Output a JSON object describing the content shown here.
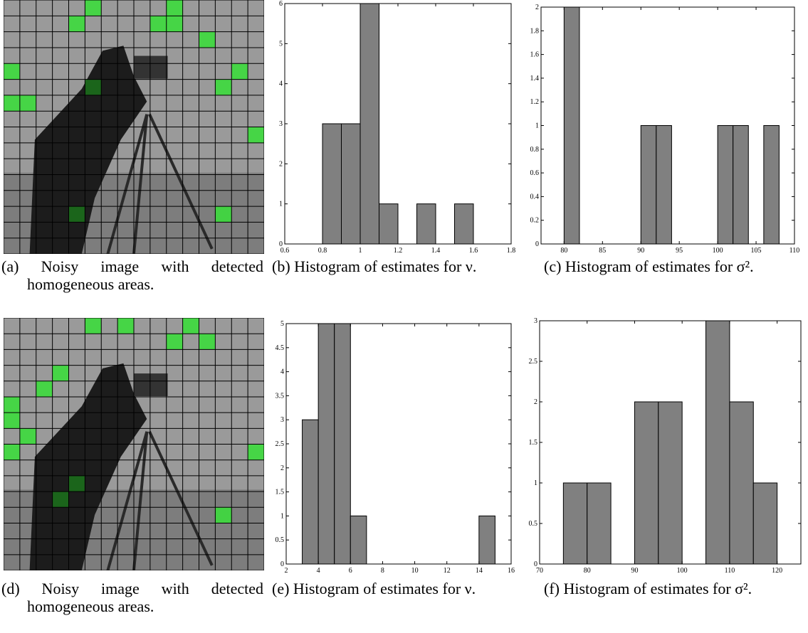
{
  "chart_data": [
    {
      "type": "histogram",
      "bins": [
        0.8,
        0.9,
        1.0,
        1.1,
        1.2,
        1.3,
        1.4,
        1.5,
        1.6
      ],
      "counts": [
        3,
        3,
        6,
        1,
        0,
        1,
        0,
        1
      ],
      "color": "#808080",
      "xlim": [
        0.6,
        1.8
      ],
      "xticks": [
        0.6,
        0.8,
        1,
        1.2,
        1.4,
        1.6,
        1.8
      ],
      "ylim": [
        0,
        6
      ],
      "yticks": [
        0,
        1,
        2,
        3,
        4,
        5,
        6
      ]
    },
    {
      "type": "histogram",
      "bins": [
        80,
        82,
        84,
        86,
        88,
        90,
        92,
        94,
        96,
        98,
        100,
        102,
        104,
        106,
        108
      ],
      "counts": [
        2,
        0,
        0,
        0,
        0,
        1,
        1,
        0,
        0,
        0,
        1,
        1,
        0,
        1
      ],
      "color": "#808080",
      "xlim": [
        77,
        110
      ],
      "xticks": [
        80,
        85,
        90,
        95,
        100,
        105,
        110
      ],
      "ylim": [
        0,
        2
      ],
      "yticks": [
        0,
        0.2,
        0.4,
        0.6,
        0.8,
        1,
        1.2,
        1.4,
        1.6,
        1.8,
        2
      ]
    },
    {
      "type": "histogram",
      "bins": [
        3,
        4,
        5,
        6,
        7,
        8,
        9,
        10,
        11,
        12,
        13,
        14,
        15
      ],
      "counts": [
        3,
        5,
        5,
        1,
        0,
        0,
        0,
        0,
        0,
        0,
        0,
        1
      ],
      "color": "#808080",
      "xlim": [
        2,
        16
      ],
      "xticks": [
        2,
        4,
        6,
        8,
        10,
        12,
        14,
        16
      ],
      "ylim": [
        0,
        5
      ],
      "yticks": [
        0,
        0.5,
        1,
        1.5,
        2,
        2.5,
        3,
        3.5,
        4,
        4.5,
        5
      ]
    },
    {
      "type": "histogram",
      "bins": [
        75,
        80,
        85,
        90,
        95,
        100,
        105,
        110,
        115,
        120
      ],
      "counts": [
        1,
        1,
        0,
        2,
        2,
        0,
        3,
        2,
        1
      ],
      "color": "#808080",
      "xlim": [
        70,
        125
      ],
      "xticks": [
        70,
        80,
        90,
        100,
        110,
        120
      ],
      "ylim": [
        0,
        3
      ],
      "yticks": [
        0,
        0.5,
        1,
        1.5,
        2,
        2.5,
        3
      ]
    }
  ],
  "captions": [
    "(a) Noisy image with detected homogeneous areas.",
    "(b) Histogram of estimates for ν.",
    "(c) Histogram of estimates for σ².",
    "(d) Noisy image with detected homogeneous areas.",
    "(e) Histogram of estimates for ν.",
    "(f) Histogram of estimates for σ²."
  ]
}
